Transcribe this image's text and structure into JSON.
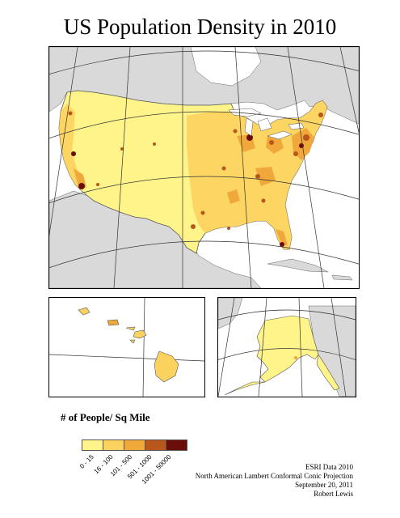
{
  "title": "US Population Density in 2010",
  "legend": {
    "title": "# of People/ Sq Mile",
    "classes": [
      {
        "label": "0 - 15",
        "color": "#fff48a"
      },
      {
        "label": "16 - 100",
        "color": "#fcd25e"
      },
      {
        "label": "101 - 500",
        "color": "#f0a83a"
      },
      {
        "label": "501 - 1000",
        "color": "#b8561c"
      },
      {
        "label": "1001 - 50000",
        "color": "#6b0e0a"
      }
    ]
  },
  "credits": {
    "line1": "ESRI Data 2010",
    "line2": "North American Lambert Conformal Conic Projection",
    "line3": "September 20, 2011",
    "line4": "Robert Lewis"
  },
  "colors": {
    "ocean": "#ffffff",
    "canada": "#d9d9d9",
    "graticule": "#333333",
    "county_border": "#9a7a2a"
  }
}
